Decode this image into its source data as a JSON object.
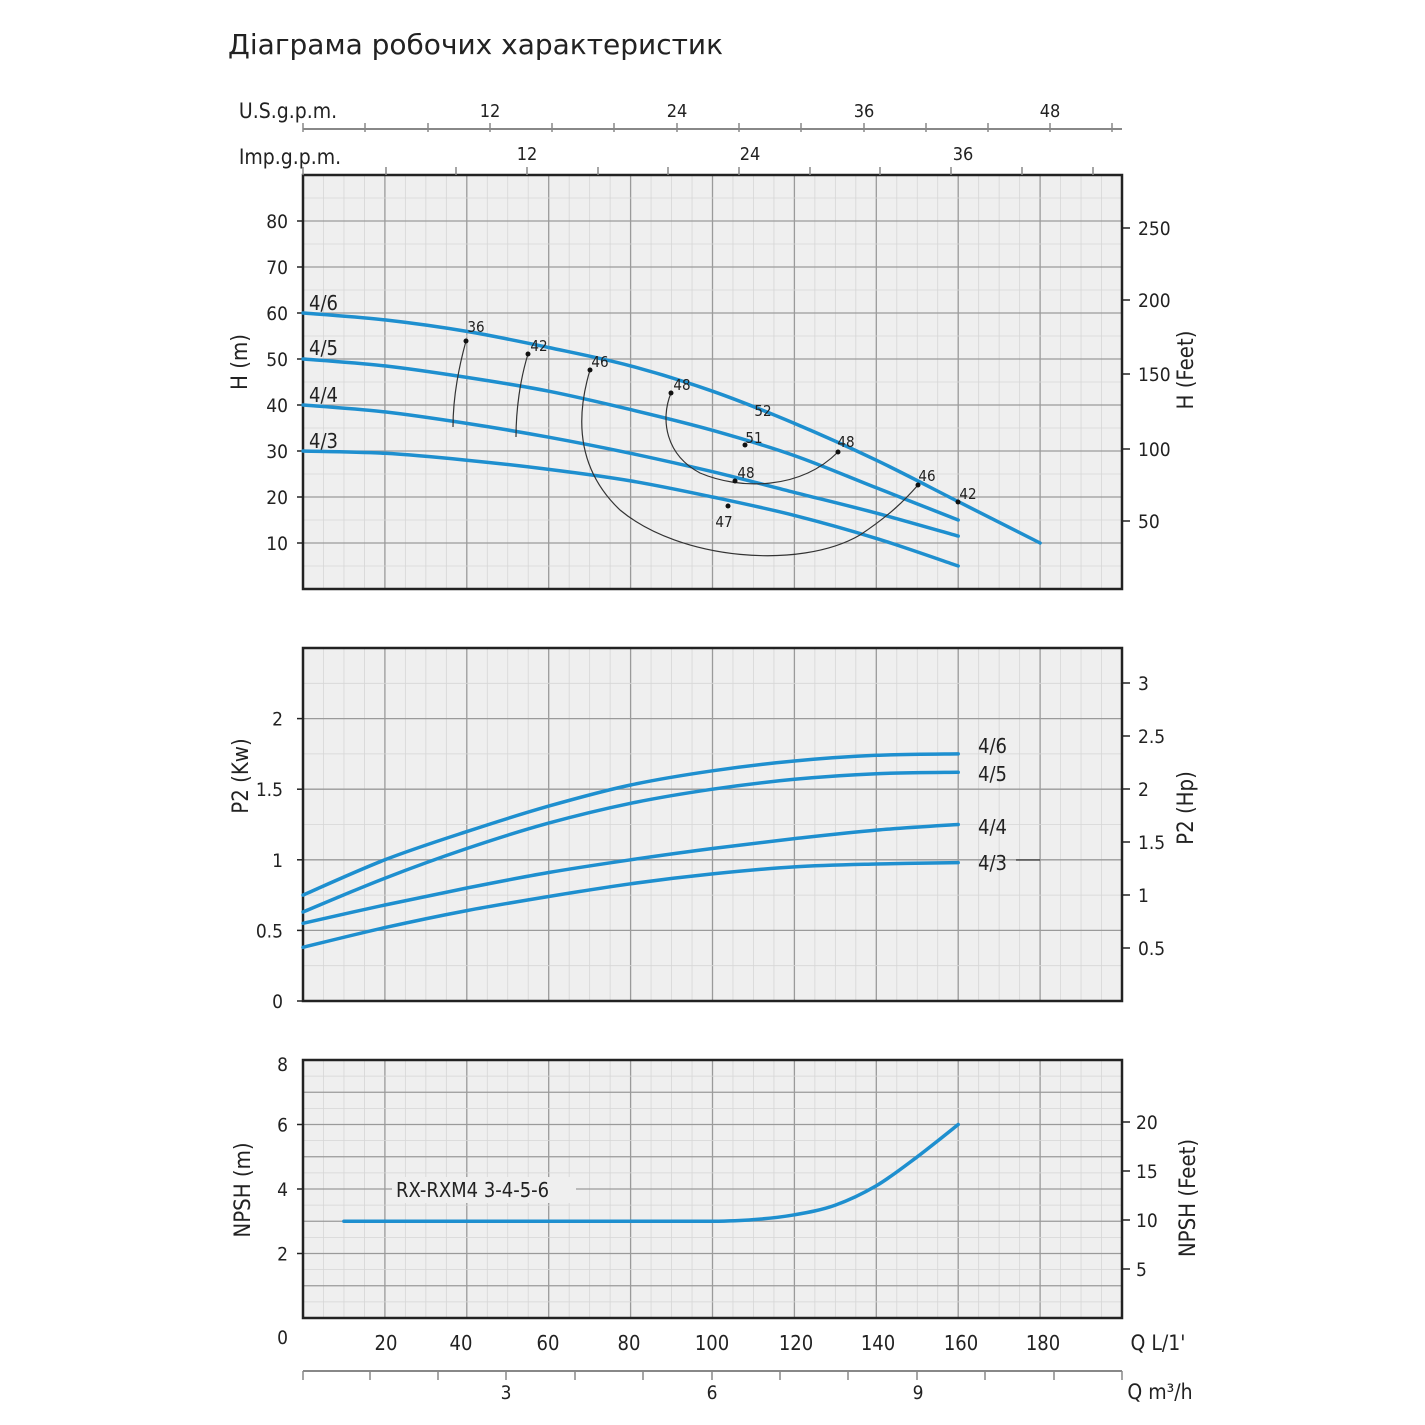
{
  "page_title": "Діаграма робочих характеристик",
  "colors": {
    "curve": "#1e8fcf",
    "grid_minor": "#d6d6d6",
    "grid_major": "#9a9a9a",
    "plot_bg": "#efefef",
    "frame": "#222222"
  },
  "chart_data": [
    {
      "type": "line",
      "title": "",
      "xlabel": "Q L/1'",
      "ylabel": "H (m)",
      "ylabel_right": "H (Feet)",
      "top_axes": [
        {
          "label": "U.S.g.p.m.",
          "ticks": [
            "12",
            "24",
            "36",
            "48"
          ]
        },
        {
          "label": "Imp.g.p.m.",
          "ticks": [
            "12",
            "24",
            "36"
          ]
        }
      ],
      "xlim": [
        0,
        200
      ],
      "ylim": [
        0,
        90
      ],
      "yticks": [
        10,
        20,
        30,
        40,
        50,
        60,
        70,
        80
      ],
      "yticks_right": [
        50,
        100,
        150,
        200,
        250
      ],
      "grid": true,
      "series": [
        {
          "name": "4/6",
          "x": [
            0,
            20,
            40,
            60,
            80,
            100,
            120,
            140,
            160,
            180
          ],
          "y": [
            60,
            58.5,
            56,
            52.5,
            48.5,
            43,
            36,
            28,
            19,
            10
          ]
        },
        {
          "name": "4/5",
          "x": [
            0,
            20,
            40,
            60,
            80,
            100,
            120,
            140,
            160
          ],
          "y": [
            50,
            48.5,
            46,
            43,
            39,
            34.5,
            29,
            22,
            15
          ]
        },
        {
          "name": "4/4",
          "x": [
            0,
            20,
            40,
            60,
            80,
            100,
            120,
            140,
            160
          ],
          "y": [
            40,
            38.5,
            36,
            33,
            29.5,
            25.5,
            21,
            16.5,
            11.5
          ]
        },
        {
          "name": "4/3",
          "x": [
            0,
            20,
            40,
            60,
            80,
            100,
            120,
            140,
            160
          ],
          "y": [
            30,
            29.5,
            28,
            26,
            23.5,
            20,
            16,
            11,
            5
          ]
        }
      ],
      "efficiency_labels": [
        "36",
        "42",
        "46",
        "48",
        "52",
        "51",
        "48",
        "48",
        "47",
        "46",
        "42"
      ]
    },
    {
      "type": "line",
      "title": "",
      "ylabel": "P2 (Kw)",
      "ylabel_right": "P2 (Hp)",
      "xlim": [
        0,
        200
      ],
      "ylim": [
        0,
        2.5
      ],
      "yticks": [
        "0",
        "0.5",
        "1",
        "1.5",
        "2"
      ],
      "yticks_right": [
        "0.5",
        "1",
        "1.5",
        "2",
        "2.5",
        "3"
      ],
      "grid": true,
      "series": [
        {
          "name": "4/6",
          "x": [
            0,
            20,
            40,
            60,
            80,
            100,
            120,
            140,
            160
          ],
          "y": [
            0.75,
            1.0,
            1.2,
            1.38,
            1.53,
            1.63,
            1.7,
            1.74,
            1.75
          ]
        },
        {
          "name": "4/5",
          "x": [
            0,
            20,
            40,
            60,
            80,
            100,
            120,
            140,
            160
          ],
          "y": [
            0.63,
            0.87,
            1.08,
            1.26,
            1.4,
            1.5,
            1.57,
            1.61,
            1.62
          ]
        },
        {
          "name": "4/4",
          "x": [
            0,
            20,
            40,
            60,
            80,
            100,
            120,
            140,
            160
          ],
          "y": [
            0.55,
            0.68,
            0.8,
            0.91,
            1.0,
            1.08,
            1.15,
            1.21,
            1.25
          ]
        },
        {
          "name": "4/3",
          "x": [
            0,
            20,
            40,
            60,
            80,
            100,
            120,
            140,
            160
          ],
          "y": [
            0.38,
            0.52,
            0.64,
            0.74,
            0.83,
            0.9,
            0.95,
            0.97,
            0.98
          ]
        }
      ]
    },
    {
      "type": "line",
      "title": "",
      "xlabel": "Q L/1'",
      "xlabel2": "Q m³/h",
      "ylabel": "NPSH (m)",
      "ylabel_right": "NPSH (Feet)",
      "xlim": [
        0,
        200
      ],
      "ylim": [
        0,
        8
      ],
      "xticks": [
        "20",
        "40",
        "60",
        "80",
        "100",
        "120",
        "140",
        "160",
        "180"
      ],
      "xticks2": [
        "3",
        "6",
        "9"
      ],
      "yticks": [
        "0",
        "2",
        "4",
        "6",
        "8"
      ],
      "yticks_right": [
        "5",
        "10",
        "15",
        "20"
      ],
      "grid": true,
      "annotation": "RX-RXM4 3-4-5-6",
      "series": [
        {
          "name": "RX-RXM4 3-4-5-6",
          "x": [
            10,
            40,
            80,
            100,
            110,
            120,
            130,
            140,
            150,
            160
          ],
          "y": [
            3.0,
            3.0,
            3.0,
            3.0,
            3.05,
            3.2,
            3.5,
            4.1,
            5.0,
            6.0
          ]
        }
      ]
    }
  ]
}
